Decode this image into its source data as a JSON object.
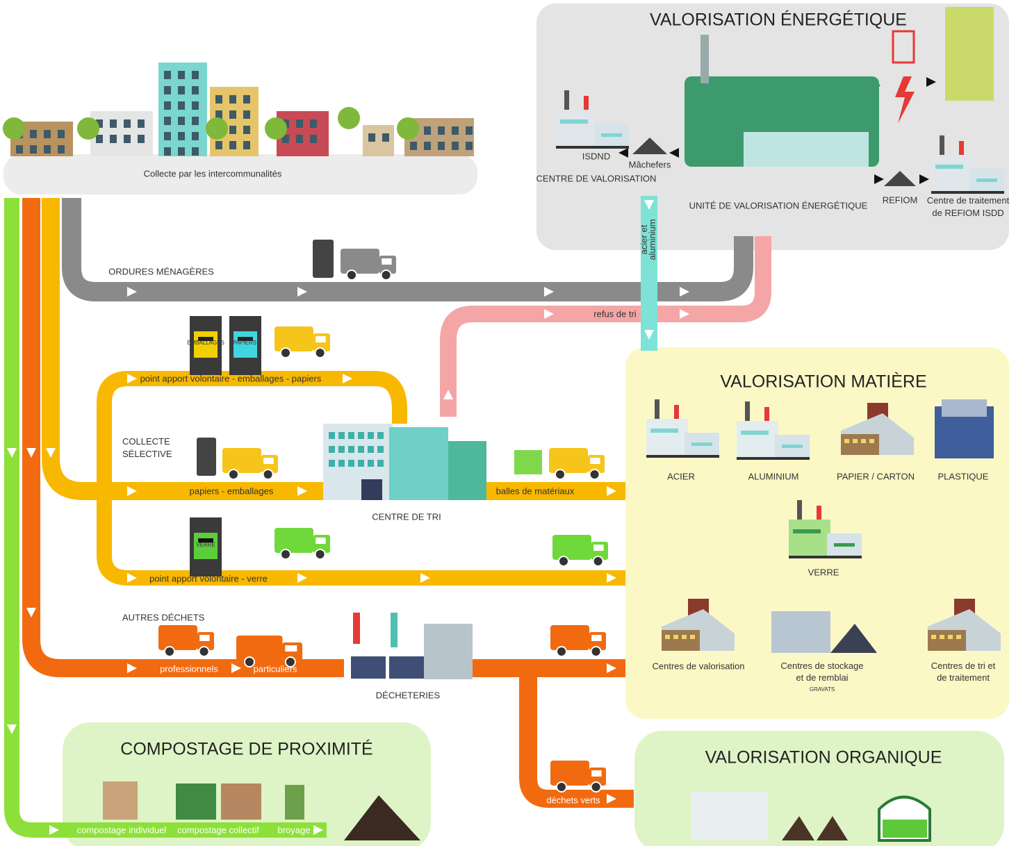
{
  "collecte": "Collecte par les intercommunalités",
  "energie": {
    "title": "VALORISATION ÉNERGÉTIQUE",
    "isdnd": "ISDND",
    "machefers": "Mâchefers",
    "centre_valorisation": "CENTRE DE VALORISATION",
    "unite": "UNITÉ DE VALORISATION ÉNERGÉTIQUE",
    "refiom": "REFIOM",
    "centre_traitement": [
      "Centre de traitement",
      "de REFIOM ISDD"
    ]
  },
  "flux": {
    "acier_aluminium": [
      "acier et",
      "aluminium"
    ],
    "ordures": "ORDURES MÉNAGÈRES",
    "refus": "refus de tri",
    "apport_emballages": "point apport volontaire - emballages - papiers",
    "bin_emballages": "EMBALLAGES",
    "bin_papiers": "PAPIERS",
    "collecte_selective": [
      "COLLECTE",
      "SÉLECTIVE"
    ],
    "papiers_emballages": "papiers - emballages",
    "balles": "balles de matériaux",
    "centre_tri": "CENTRE DE TRI",
    "bin_verre": "VERRE",
    "apport_verre": "point apport volontaire - verre",
    "autres": "AUTRES DÉCHETS",
    "professionnels": "professionnels",
    "particuliers": "particuliers",
    "decheteries": "DÉCHETERIES",
    "dechets_verts": "déchets verts"
  },
  "matiere": {
    "title": "VALORISATION MATIÈRE",
    "acier": "ACIER",
    "aluminium": "ALUMINIUM",
    "papier": "PAPIER / CARTON",
    "plastique": "PLASTIQUE",
    "verre": "VERRE",
    "valorisation": "Centres de valorisation",
    "stockage": [
      "Centres de stockage",
      "et de remblai"
    ],
    "gravats": "GRAVATS",
    "tri": [
      "Centres de tri et",
      "de traitement"
    ]
  },
  "compostage": {
    "title": "COMPOSTAGE DE PROXIMITÉ",
    "individuel": "compostage individuel",
    "collectif": "compostage collectif",
    "broyage": "broyage"
  },
  "organique": {
    "title": "VALORISATION ORGANIQUE"
  }
}
